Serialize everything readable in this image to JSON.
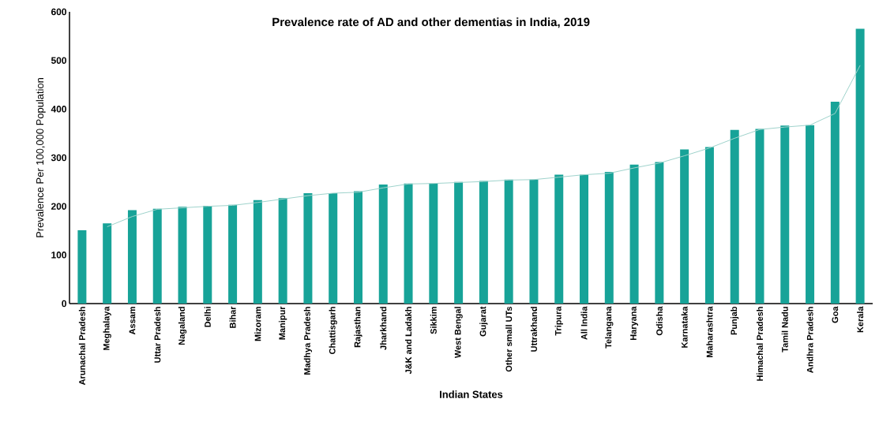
{
  "chart_data": {
    "type": "bar",
    "title": "Prevalence rate of AD and other dementias in India, 2019",
    "xlabel": "Indian States",
    "ylabel": "Prevalence Per 100,000 Population",
    "categories": [
      "Arunachal Pradesh",
      "Meghalaya",
      "Assam",
      "Uttar Pradesh",
      "Nagaland",
      "Delhi",
      "Bihar",
      "Mizoram",
      "Manipur",
      "Madhya Pradesh",
      "Chattisgarh",
      "Rajasthan",
      "Jharkhand",
      "J&K and Ladakh",
      "Sikkim",
      "West Bengal",
      "Gujarat",
      "Other small UTs",
      "Uttrakhand",
      "Tripura",
      "All India",
      "Telangana",
      "Haryana",
      "Odisha",
      "Karnataka",
      "Maharashtra",
      "Punjab",
      "Himachal Pradesh",
      "Tamil Nadu",
      "Andhra Pradesh",
      "Goa",
      "Kerala"
    ],
    "series": [
      {
        "color": "#17a398",
        "values": [
          151,
          165,
          192,
          195,
          199,
          201,
          203,
          213,
          217,
          227,
          227,
          231,
          245,
          247,
          247,
          250,
          252,
          255,
          255,
          265,
          265,
          271,
          286,
          291,
          317,
          322,
          357,
          359,
          366,
          367,
          415,
          565
        ]
      },
      {
        "type": "line",
        "color": "#9fd3cc",
        "values": [
          null,
          158,
          179,
          194,
          197,
          200,
          202,
          208,
          215,
          222,
          227,
          229,
          238,
          246,
          247,
          249,
          251,
          254,
          255,
          260,
          265,
          268,
          279,
          289,
          304,
          320,
          340,
          358,
          363,
          367,
          391,
          490
        ]
      }
    ],
    "ylim": [
      0,
      600
    ],
    "yticks": [
      0,
      100,
      200,
      300,
      400,
      500,
      600
    ],
    "grid": false,
    "marker": "none",
    "line_style": "solid"
  }
}
